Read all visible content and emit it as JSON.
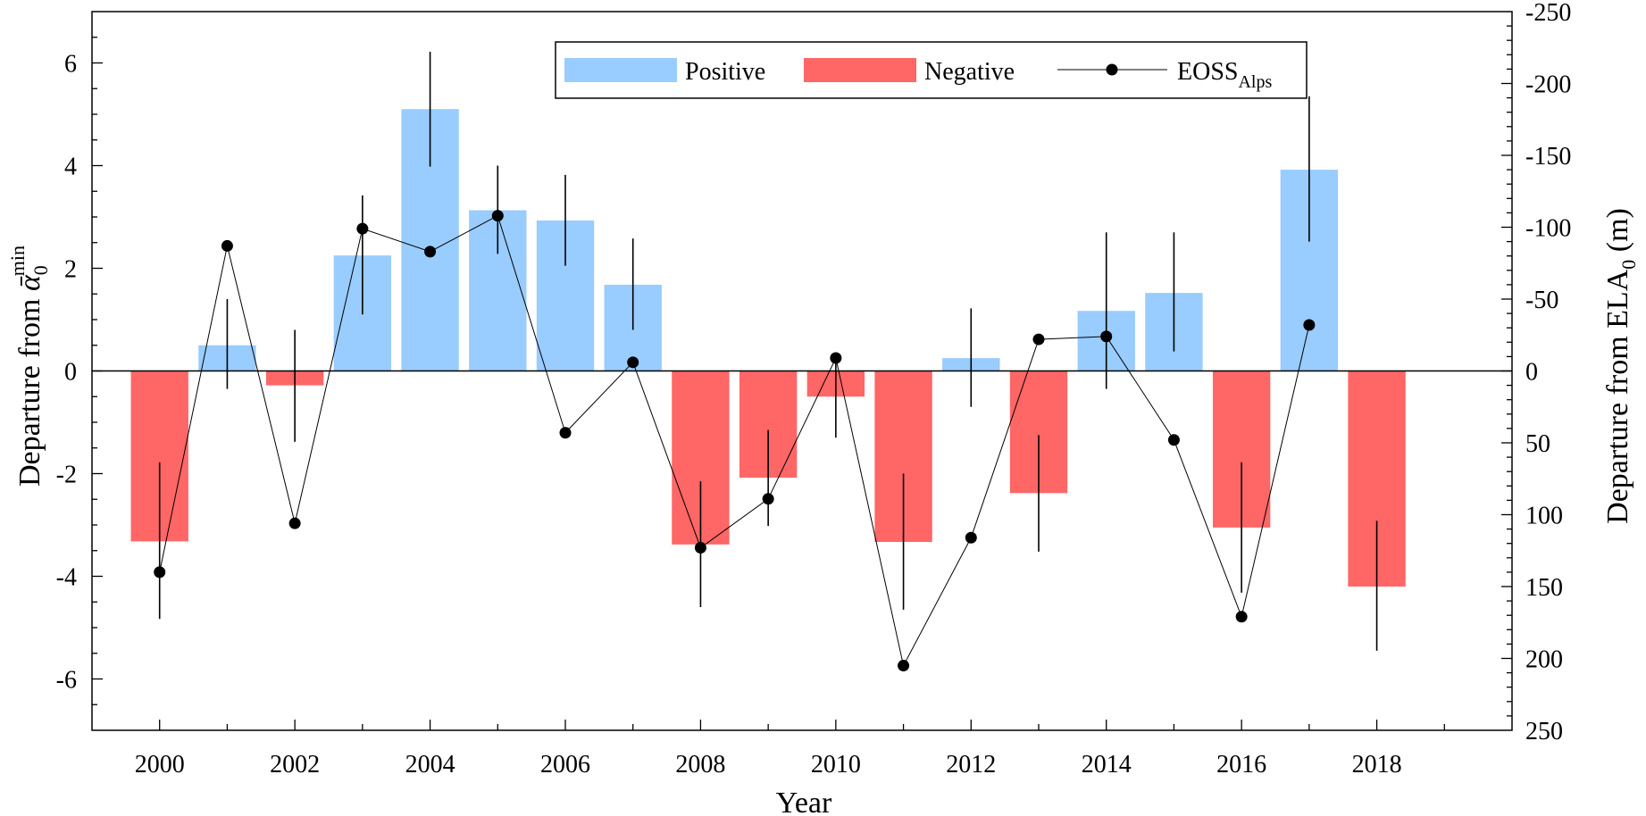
{
  "chart_data": {
    "type": "bar",
    "xlabel": "Year",
    "ylabel_left": "Departure from ",
    "ylabel_left_symbol": "ᾱ",
    "ylabel_left_sub": "0",
    "ylabel_left_sup": "min",
    "ylabel_right": "Departure from ELA",
    "ylabel_right_sub": "0",
    "ylabel_right_unit": " (m)",
    "x": [
      2000,
      2001,
      2002,
      2003,
      2004,
      2005,
      2006,
      2007,
      2008,
      2009,
      2010,
      2011,
      2012,
      2013,
      2014,
      2015,
      2016,
      2017,
      2018
    ],
    "xticks": [
      2000,
      2002,
      2004,
      2006,
      2008,
      2010,
      2012,
      2014,
      2016,
      2018
    ],
    "xlim": [
      1999,
      2020
    ],
    "ylim_left": [
      -7,
      7
    ],
    "yticks_left": [
      -6,
      -4,
      -2,
      0,
      2,
      4,
      6
    ],
    "ylim_right": [
      250,
      -250
    ],
    "yticks_right": [
      250,
      200,
      150,
      100,
      50,
      0,
      -50,
      -100,
      -150,
      -200,
      -250
    ],
    "series": [
      {
        "name": "Positive",
        "kind": "bar",
        "axis": "left",
        "color": "#99ccff",
        "values": [
          null,
          0.5,
          null,
          2.25,
          5.1,
          3.13,
          2.93,
          1.68,
          null,
          null,
          null,
          null,
          0.25,
          null,
          1.17,
          1.52,
          null,
          3.92,
          null
        ],
        "err_low": [
          null,
          -0.35,
          null,
          1.1,
          3.98,
          2.28,
          2.05,
          0.8,
          null,
          null,
          null,
          null,
          -0.7,
          null,
          -0.35,
          0.38,
          null,
          2.52,
          null
        ],
        "err_high": [
          null,
          1.4,
          null,
          3.42,
          6.22,
          4.0,
          3.82,
          2.58,
          null,
          null,
          null,
          null,
          1.22,
          null,
          2.7,
          2.7,
          null,
          5.35,
          null
        ]
      },
      {
        "name": "Negative",
        "kind": "bar",
        "axis": "left",
        "color": "#ff6666",
        "values": [
          -3.32,
          null,
          -0.28,
          null,
          null,
          null,
          null,
          null,
          -3.38,
          -2.08,
          -0.5,
          -3.33,
          null,
          -2.38,
          null,
          null,
          -3.05,
          null,
          -4.2
        ],
        "err_low": [
          -4.83,
          null,
          -1.38,
          null,
          null,
          null,
          null,
          null,
          -4.6,
          -3.02,
          -1.3,
          -4.65,
          null,
          -3.52,
          null,
          null,
          -4.32,
          null,
          -5.45
        ],
        "err_high": [
          -1.78,
          null,
          0.8,
          null,
          null,
          null,
          null,
          null,
          -2.15,
          -1.15,
          0.35,
          -2.0,
          null,
          -1.25,
          null,
          null,
          -1.78,
          null,
          -2.92
        ]
      },
      {
        "name": "EOSS",
        "name_sub": "Alps",
        "kind": "line",
        "axis": "right",
        "color": "#000000",
        "values": [
          140,
          -87,
          106,
          -99,
          -83,
          -108,
          43,
          -6,
          123,
          89,
          -9,
          205,
          116,
          -22,
          -24,
          48,
          171,
          -32,
          null
        ]
      }
    ],
    "legend_position": "top-center",
    "grid": false
  }
}
